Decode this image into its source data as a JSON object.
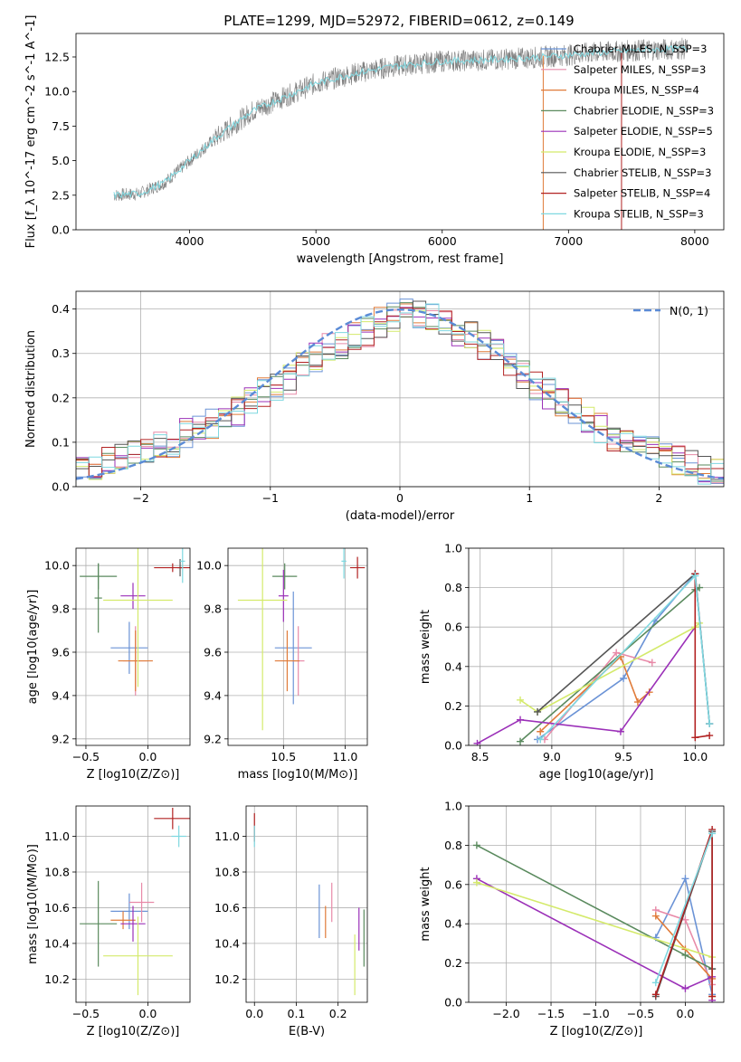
{
  "figure_title": "PLATE=1299, MJD=52972, FIBERID=0612, z=0.149",
  "colors": {
    "Chabrier MILES": "#6b93d6",
    "Salpeter MILES": "#e88aa8",
    "Kroupa MILES": "#e07b39",
    "Chabrier ELODIE": "#5a8a5e",
    "Salpeter ELODIE": "#9b30b8",
    "Kroupa ELODIE": "#d4ea6b",
    "Chabrier STELIB": "#555555",
    "Salpeter STELIB": "#b22222",
    "Kroupa STELIB": "#7fd8e0",
    "spectrum": "#808080",
    "gaussian": "#5b8bd6"
  },
  "chart_data": [
    {
      "type": "line",
      "id": "spectrum",
      "xlabel": "wavelength [Angstrom, rest frame]",
      "ylabel": "Flux [f_λ 10^-17 erg cm^-2 s^-1 A^-1]",
      "xlim": [
        3100,
        8230
      ],
      "ylim": [
        0,
        14.2
      ],
      "xticks": [
        4000,
        5000,
        6000,
        7000,
        8000
      ],
      "yticks": [
        0.0,
        2.5,
        5.0,
        7.5,
        10.0,
        12.5
      ],
      "grid": false,
      "legend_position": "top-right",
      "legend": [
        {
          "label": "Chabrier MILES, N_SSP=3",
          "color_key": "Chabrier MILES"
        },
        {
          "label": "Salpeter MILES, N_SSP=3",
          "color_key": "Salpeter MILES"
        },
        {
          "label": "Kroupa MILES, N_SSP=4",
          "color_key": "Kroupa MILES"
        },
        {
          "label": "Chabrier ELODIE, N_SSP=3",
          "color_key": "Chabrier ELODIE"
        },
        {
          "label": "Salpeter ELODIE, N_SSP=5",
          "color_key": "Salpeter ELODIE"
        },
        {
          "label": "Kroupa ELODIE, N_SSP=3",
          "color_key": "Kroupa ELODIE"
        },
        {
          "label": "Chabrier STELIB, N_SSP=3",
          "color_key": "Chabrier STELIB"
        },
        {
          "label": "Salpeter STELIB, N_SSP=4",
          "color_key": "Salpeter STELIB"
        },
        {
          "label": "Kroupa STELIB, N_SSP=3",
          "color_key": "Kroupa STELIB"
        }
      ],
      "continuum_points": [
        [
          3400,
          2.5
        ],
        [
          3600,
          2.6
        ],
        [
          3800,
          3.4
        ],
        [
          4000,
          5.0
        ],
        [
          4200,
          6.6
        ],
        [
          4500,
          8.6
        ],
        [
          4800,
          9.8
        ],
        [
          5000,
          10.6
        ],
        [
          5300,
          11.3
        ],
        [
          5600,
          11.8
        ],
        [
          6000,
          12.2
        ],
        [
          6400,
          12.3
        ],
        [
          6800,
          12.5
        ],
        [
          7200,
          12.8
        ],
        [
          7600,
          13.0
        ],
        [
          7950,
          13.1
        ]
      ]
    },
    {
      "type": "line",
      "id": "residuals",
      "xlabel": "(data-model)/error",
      "ylabel": "Normed distribution",
      "xlim": [
        -2.5,
        2.5
      ],
      "ylim": [
        0,
        0.44
      ],
      "xticks": [
        -2,
        -1,
        0,
        1,
        2
      ],
      "yticks": [
        0.0,
        0.1,
        0.2,
        0.3,
        0.4
      ],
      "grid": true,
      "legend_position": "top-right",
      "legend": [
        {
          "label": "N(0, 1)",
          "color_key": "gaussian"
        }
      ],
      "bin_width": 0.1,
      "bin_start": -2.5,
      "histogram_profile": [
        0.04,
        0.05,
        0.06,
        0.07,
        0.07,
        0.08,
        0.09,
        0.1,
        0.12,
        0.13,
        0.14,
        0.16,
        0.17,
        0.19,
        0.21,
        0.22,
        0.24,
        0.27,
        0.29,
        0.31,
        0.32,
        0.34,
        0.35,
        0.37,
        0.38,
        0.39,
        0.39,
        0.38,
        0.37,
        0.35,
        0.34,
        0.32,
        0.3,
        0.27,
        0.25,
        0.23,
        0.21,
        0.19,
        0.17,
        0.15,
        0.13,
        0.11,
        0.1,
        0.09,
        0.08,
        0.07,
        0.06,
        0.05,
        0.04,
        0.03
      ]
    },
    {
      "type": "scatter",
      "id": "age-vs-Z",
      "xlabel": "Z [log10(Z/Z⊙)]",
      "ylabel": "age [log10(age/yr)]",
      "xlim": [
        -0.58,
        0.34
      ],
      "ylim": [
        9.17,
        10.08
      ],
      "xticks": [
        "-0.5",
        "0.0"
      ],
      "yticks": [
        "9.2",
        "9.4",
        "9.6",
        "9.8",
        "10.0"
      ],
      "grid": true,
      "points": [
        {
          "k": "Chabrier MILES",
          "x": -0.15,
          "xe": 0.15,
          "y": 9.62,
          "ye": 0.12
        },
        {
          "k": "Salpeter MILES",
          "x": -0.1,
          "xe": 0.1,
          "y": 9.56,
          "ye": 0.16
        },
        {
          "k": "Kroupa MILES",
          "x": -0.1,
          "xe": 0.14,
          "y": 9.56,
          "ye": 0.14
        },
        {
          "k": "Chabrier ELODIE",
          "x": -0.4,
          "xe": 0.15,
          "y": 9.95,
          "ye": 0.06
        },
        {
          "k": "Chabrier ELODIE",
          "x": -0.4,
          "xe": 0.03,
          "y": 9.85,
          "ye": 0.16
        },
        {
          "k": "Salpeter ELODIE",
          "x": -0.12,
          "xe": 0.1,
          "y": 9.86,
          "ye": 0.06
        },
        {
          "k": "Kroupa ELODIE",
          "x": -0.08,
          "xe": 0.28,
          "y": 9.84,
          "ye": 0.4
        },
        {
          "k": "Chabrier STELIB",
          "x": 0.26,
          "xe": 0.02,
          "y": 9.99,
          "ye": 0.04
        },
        {
          "k": "Salpeter STELIB",
          "x": 0.2,
          "xe": 0.15,
          "y": 9.99,
          "ye": 0.02
        },
        {
          "k": "Kroupa STELIB",
          "x": 0.28,
          "xe": 0.02,
          "y": 10.02,
          "ye": 0.1
        }
      ]
    },
    {
      "type": "scatter",
      "id": "age-vs-mass",
      "xlabel": "mass [log10(M/M⊙)]",
      "ylabel": "",
      "xlim": [
        10.05,
        11.18
      ],
      "ylim": [
        9.17,
        10.08
      ],
      "xticks": [
        "10.5",
        "11.0"
      ],
      "yticks": [
        "9.2",
        "9.4",
        "9.6",
        "9.8",
        "10.0"
      ],
      "grid": true,
      "points": [
        {
          "k": "Chabrier MILES",
          "x": 10.58,
          "xe": 0.15,
          "y": 9.62,
          "ye": 0.26
        },
        {
          "k": "Salpeter MILES",
          "x": 10.62,
          "xe": 0.05,
          "y": 9.56,
          "ye": 0.16
        },
        {
          "k": "Kroupa MILES",
          "x": 10.53,
          "xe": 0.1,
          "y": 9.56,
          "ye": 0.14
        },
        {
          "k": "Chabrier ELODIE",
          "x": 10.51,
          "xe": 0.1,
          "y": 9.95,
          "ye": 0.06
        },
        {
          "k": "Salpeter ELODIE",
          "x": 10.5,
          "xe": 0.04,
          "y": 9.86,
          "ye": 0.12
        },
        {
          "k": "Kroupa ELODIE",
          "x": 10.33,
          "xe": 0.2,
          "y": 9.84,
          "ye": 0.6
        },
        {
          "k": "Salpeter STELIB",
          "x": 11.1,
          "xe": 0.06,
          "y": 9.99,
          "ye": 0.05
        },
        {
          "k": "Kroupa STELIB",
          "x": 10.99,
          "xe": 0.02,
          "y": 10.02,
          "ye": 0.08
        }
      ]
    },
    {
      "type": "line",
      "id": "mass-weight-vs-age",
      "xlabel": "age [log10(age/yr)]",
      "ylabel": "mass weight",
      "xlim": [
        8.42,
        10.2
      ],
      "ylim": [
        0.0,
        1.0
      ],
      "xticks": [
        "8.5",
        "9.0",
        "9.5",
        "10.0"
      ],
      "yticks": [
        "0.0",
        "0.2",
        "0.4",
        "0.6",
        "0.8",
        "1.0"
      ],
      "grid": true,
      "series": [
        {
          "k": "Chabrier MILES",
          "x": [
            8.9,
            9.5,
            9.72,
            10.0,
            10.1
          ],
          "y": [
            0.03,
            0.34,
            0.63,
            0.87,
            0.11
          ]
        },
        {
          "k": "Salpeter MILES",
          "x": [
            8.95,
            9.45,
            9.7
          ],
          "y": [
            0.03,
            0.47,
            0.42
          ]
        },
        {
          "k": "Kroupa MILES",
          "x": [
            8.92,
            9.48,
            9.6,
            9.68
          ],
          "y": [
            0.07,
            0.45,
            0.22,
            0.27
          ]
        },
        {
          "k": "Chabrier ELODIE",
          "x": [
            8.78,
            10.0,
            10.03
          ],
          "y": [
            0.02,
            0.79,
            0.8
          ]
        },
        {
          "k": "Salpeter ELODIE",
          "x": [
            8.48,
            8.78,
            9.48,
            10.0
          ],
          "y": [
            0.01,
            0.13,
            0.07,
            0.6
          ]
        },
        {
          "k": "Kroupa ELODIE",
          "x": [
            8.78,
            8.9,
            10.0,
            10.03
          ],
          "y": [
            0.23,
            0.17,
            0.6,
            0.62
          ]
        },
        {
          "k": "Chabrier STELIB",
          "x": [
            8.9,
            10.0,
            10.1
          ],
          "y": [
            0.17,
            0.87,
            0.11
          ]
        },
        {
          "k": "Salpeter STELIB",
          "x": [
            10.0,
            10.0,
            10.1
          ],
          "y": [
            0.87,
            0.04,
            0.05
          ]
        },
        {
          "k": "Kroupa STELIB",
          "x": [
            8.92,
            10.0,
            10.1
          ],
          "y": [
            0.03,
            0.86,
            0.11
          ]
        }
      ]
    },
    {
      "type": "scatter",
      "id": "mass-vs-Z",
      "xlabel": "Z [log10(Z/Z⊙)]",
      "ylabel": "mass [log10(M/M⊙)]",
      "xlim": [
        -0.58,
        0.34
      ],
      "ylim": [
        10.07,
        11.17
      ],
      "xticks": [
        "-0.5",
        "0.0"
      ],
      "yticks": [
        "10.2",
        "10.4",
        "10.6",
        "10.8",
        "11.0"
      ],
      "grid": true,
      "points": [
        {
          "k": "Chabrier MILES",
          "x": -0.15,
          "xe": 0.15,
          "y": 10.58,
          "ye": 0.1
        },
        {
          "k": "Salpeter MILES",
          "x": -0.05,
          "xe": 0.1,
          "y": 10.63,
          "ye": 0.11
        },
        {
          "k": "Kroupa MILES",
          "x": -0.2,
          "xe": 0.1,
          "y": 10.53,
          "ye": 0.05
        },
        {
          "k": "Chabrier ELODIE",
          "x": -0.4,
          "xe": 0.15,
          "y": 10.51,
          "ye": 0.24
        },
        {
          "k": "Salpeter ELODIE",
          "x": -0.12,
          "xe": 0.1,
          "y": 10.51,
          "ye": 0.1
        },
        {
          "k": "Kroupa ELODIE",
          "x": -0.08,
          "xe": 0.28,
          "y": 10.33,
          "ye": 0.22
        },
        {
          "k": "Salpeter STELIB",
          "x": 0.2,
          "xe": 0.15,
          "y": 11.1,
          "ye": 0.06
        },
        {
          "k": "Kroupa STELIB",
          "x": 0.25,
          "xe": 0.06,
          "y": 11.0,
          "ye": 0.06
        }
      ]
    },
    {
      "type": "scatter",
      "id": "mass-vs-ebv",
      "xlabel": "E(B-V)",
      "ylabel": "",
      "xlim": [
        -0.02,
        0.27
      ],
      "ylim": [
        10.07,
        11.17
      ],
      "xticks": [
        "0.0",
        "0.1",
        "0.2"
      ],
      "yticks": [
        "10.2",
        "10.4",
        "10.6",
        "10.8",
        "11.0"
      ],
      "grid": true,
      "points": [
        {
          "k": "Chabrier MILES",
          "x": 0.155,
          "xe": 0,
          "y": 10.58,
          "ye": 0.15
        },
        {
          "k": "Salpeter MILES",
          "x": 0.185,
          "xe": 0,
          "y": 10.63,
          "ye": 0.11
        },
        {
          "k": "Kroupa MILES",
          "x": 0.17,
          "xe": 0,
          "y": 10.52,
          "ye": 0.09
        },
        {
          "k": "Chabrier ELODIE",
          "x": 0.262,
          "xe": 0,
          "y": 10.43,
          "ye": 0.16
        },
        {
          "k": "Salpeter ELODIE",
          "x": 0.25,
          "xe": 0,
          "y": 10.48,
          "ye": 0.12
        },
        {
          "k": "Kroupa ELODIE",
          "x": 0.24,
          "xe": 0,
          "y": 10.28,
          "ye": 0.17
        },
        {
          "k": "Salpeter STELIB",
          "x": 0.0,
          "xe": 0,
          "y": 11.05,
          "ye": 0.08
        },
        {
          "k": "Kroupa STELIB",
          "x": 0.0,
          "xe": 0,
          "y": 11.0,
          "ye": 0.06
        }
      ]
    },
    {
      "type": "line",
      "id": "mass-weight-vs-Z",
      "xlabel": "Z [log10(Z/Z⊙)]",
      "ylabel": "mass weight",
      "xlim": [
        -2.42,
        0.43
      ],
      "ylim": [
        0.0,
        1.0
      ],
      "xticks": [
        "-2.0",
        "-1.5",
        "-1.0",
        "-0.5",
        "0.0"
      ],
      "yticks": [
        "0.0",
        "0.2",
        "0.4",
        "0.6",
        "0.8",
        "1.0"
      ],
      "grid": true,
      "series": [
        {
          "k": "Chabrier MILES",
          "x": [
            -0.33,
            0.0,
            0.3
          ],
          "y": [
            0.33,
            0.63,
            0.04
          ]
        },
        {
          "k": "Salpeter MILES",
          "x": [
            -0.33,
            0.0,
            0.3
          ],
          "y": [
            0.47,
            0.42,
            0.09
          ]
        },
        {
          "k": "Kroupa MILES",
          "x": [
            -0.33,
            0.0,
            0.3
          ],
          "y": [
            0.44,
            0.27,
            0.12
          ]
        },
        {
          "k": "Chabrier ELODIE",
          "x": [
            -2.33,
            0.0,
            0.3
          ],
          "y": [
            0.8,
            0.24,
            0.17
          ]
        },
        {
          "k": "Salpeter ELODIE",
          "x": [
            -2.33,
            0.0,
            0.3,
            0.3
          ],
          "y": [
            0.63,
            0.07,
            0.13,
            0.01
          ]
        },
        {
          "k": "Kroupa ELODIE",
          "x": [
            -2.33,
            0.3,
            0.3
          ],
          "y": [
            0.61,
            0.23,
            0.03
          ]
        },
        {
          "k": "Chabrier STELIB",
          "x": [
            -0.33,
            0.3,
            0.3
          ],
          "y": [
            0.03,
            0.87,
            0.17
          ]
        },
        {
          "k": "Salpeter STELIB",
          "x": [
            -0.33,
            0.3,
            0.3
          ],
          "y": [
            0.04,
            0.88,
            0.03
          ]
        },
        {
          "k": "Kroupa STELIB",
          "x": [
            -0.33,
            0.3
          ],
          "y": [
            0.1,
            0.86
          ]
        }
      ]
    }
  ]
}
